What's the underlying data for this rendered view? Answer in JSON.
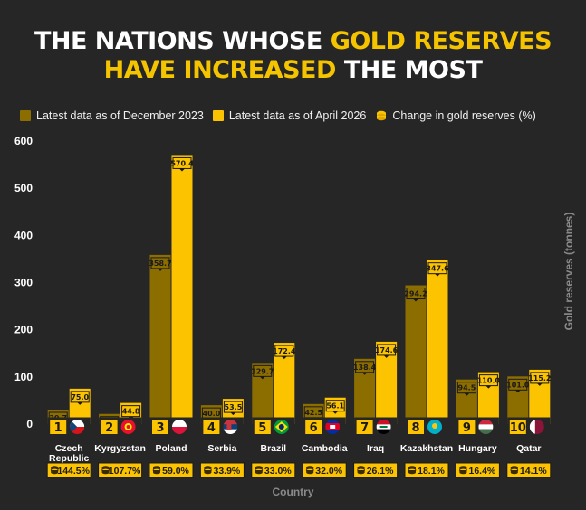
{
  "title": {
    "line1_part1": "The nations whose ",
    "line1_part2": "gold reserves",
    "line2_part1": "have increased",
    "line2_part2": " the most"
  },
  "legend": {
    "dec2023": "Latest data as of December 2023",
    "apr2026": "Latest data as of April 2026",
    "change": "Change in gold reserves (%)"
  },
  "colors": {
    "background": "#262626",
    "dec2023": "#8c6d00",
    "apr2026": "#fcc300",
    "badge": "#fcc300",
    "highlight": "#f5c400"
  },
  "chart_data": {
    "type": "bar",
    "categories": [
      "Czech Republic",
      "Kyrgyzstan",
      "Poland",
      "Serbia",
      "Brazil",
      "Cambodia",
      "Iraq",
      "Kazakhstan",
      "Hungary",
      "Qatar"
    ],
    "ranks": [
      "1",
      "2",
      "3",
      "4",
      "5",
      "6",
      "7",
      "8",
      "9",
      "10"
    ],
    "flag_icons": [
      "czech-flag-icon",
      "kyrgyzstan-flag-icon",
      "poland-flag-icon",
      "serbia-flag-icon",
      "brazil-flag-icon",
      "cambodia-flag-icon",
      "iraq-flag-icon",
      "kazakhstan-flag-icon",
      "hungary-flag-icon",
      "qatar-flag-icon"
    ],
    "series": [
      {
        "name": "Latest data as of December 2023",
        "values": [
          30.7,
          21.6,
          358.7,
          40.0,
          129.7,
          42.5,
          138.4,
          294.2,
          94.5,
          101.0
        ]
      },
      {
        "name": "Latest data as of April 2026",
        "values": [
          75.0,
          44.8,
          570.4,
          53.5,
          172.4,
          56.1,
          174.6,
          347.6,
          110.0,
          115.2
        ]
      }
    ],
    "value_labels": [
      [
        "30.7",
        "21.6",
        "358.7",
        "40.0",
        "129.7",
        "42.5",
        "138.4",
        "294.2",
        "94.5",
        "101.0"
      ],
      [
        "75.0",
        "44.8",
        "570.4",
        "53.5",
        "172.4",
        "56.1",
        "174.6",
        "347.6",
        "110.0",
        "115.2"
      ]
    ],
    "change_pct": [
      "144.5%",
      "107.7%",
      "59.0%",
      "33.9%",
      "33.0%",
      "32.0%",
      "26.1%",
      "18.1%",
      "16.4%",
      "14.1%"
    ],
    "xlabel": "Country",
    "ylabel": "Gold reserves (tonnes)",
    "ylim": [
      0,
      600
    ],
    "yticks": [
      "0",
      "100",
      "200",
      "300",
      "400",
      "500",
      "600"
    ],
    "grid": false,
    "legend_position": "top-left"
  }
}
